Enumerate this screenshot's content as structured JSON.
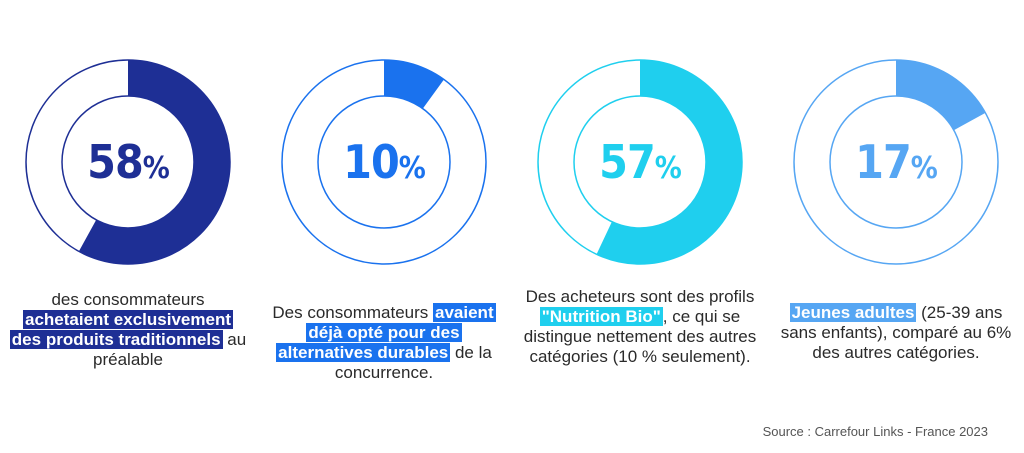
{
  "chart_data": [
    {
      "type": "donut",
      "value": 58,
      "unit": "%",
      "color": "#1e2f95",
      "text_color": "#1e2f95",
      "caption_pre": "des consommateurs",
      "caption_hl": "achetaient exclusivement des produits traditionnels",
      "caption_post": " au préalable",
      "hl_color": "#1e2f95"
    },
    {
      "type": "donut",
      "value": 10,
      "unit": "%",
      "color": "#1a72ee",
      "text_color": "#1a72ee",
      "caption_pre": "Des consommateurs",
      "caption_hl": "avaient déjà opté pour des alternatives durables",
      "caption_post": " de la concurrence.",
      "hl_color": "#1a72ee"
    },
    {
      "type": "donut",
      "value": 57,
      "unit": "%",
      "color": "#1fcfee",
      "text_color": "#1fcfee",
      "caption_pre": "Des acheteurs sont des profils ",
      "caption_hl": "\"Nutrition Bio\"",
      "caption_post": ", ce qui se distingue nettement des autres catégories (10 % seulement).",
      "hl_color": "#1fcfee"
    },
    {
      "type": "donut",
      "value": 17,
      "unit": "%",
      "color": "#56a6f3",
      "text_color": "#56a6f3",
      "caption_pre": "",
      "caption_hl": "Jeunes adultes",
      "caption_post": " (25-39 ans sans enfants), comparé au 6% des autres catégories.",
      "hl_color": "#56a6f3"
    }
  ],
  "source": "Source : Carrefour Links - France 2023"
}
